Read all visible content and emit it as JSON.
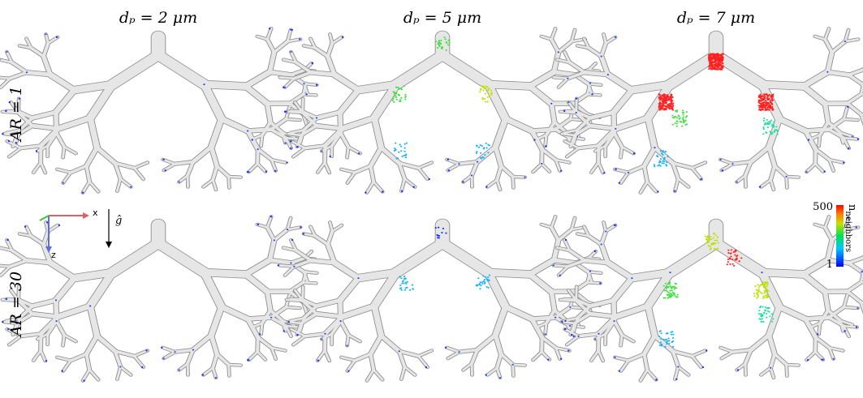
{
  "columns": [
    "dₚ = 2 μm",
    "dₚ = 5 μm",
    "dₚ = 7 μm"
  ],
  "rows": [
    "AR = 1",
    "AR = 30"
  ],
  "axes": {
    "x": "x",
    "z": "z",
    "gravity": "ĝ"
  },
  "colorbar": {
    "label": "n",
    "label_subscript": "neighbors",
    "max": 500,
    "min": 1
  }
}
